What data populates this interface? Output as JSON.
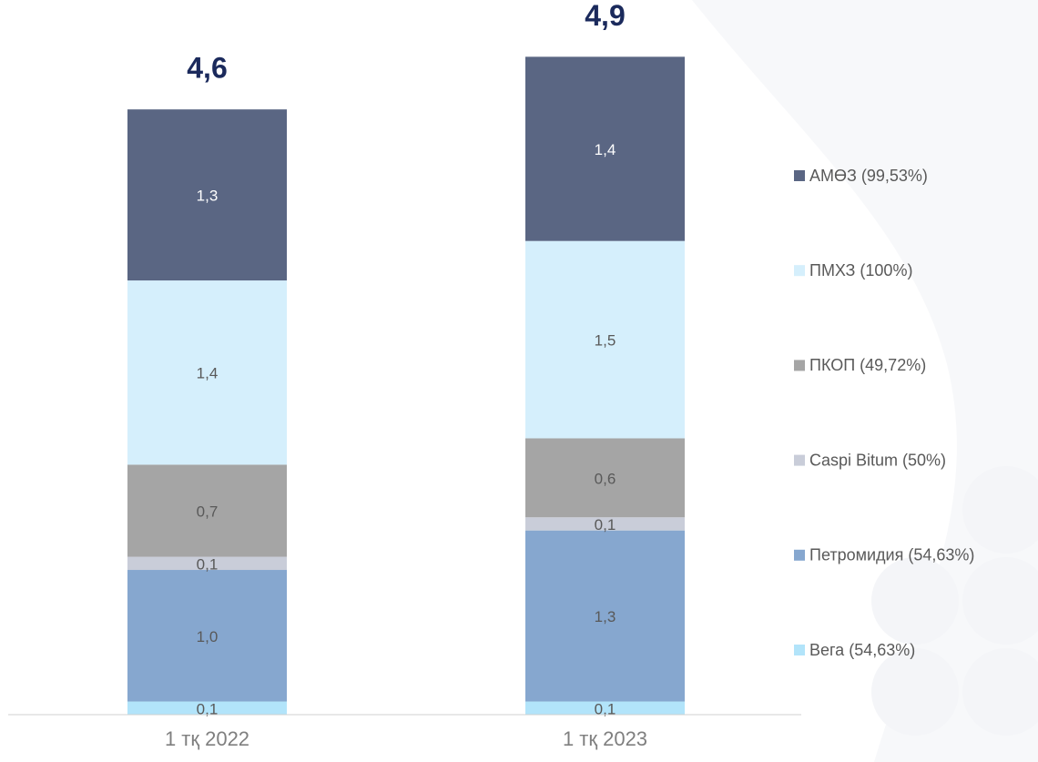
{
  "chart_data": {
    "type": "bar",
    "stacked": true,
    "categories": [
      "1 тқ 2022",
      "1 тқ 2023"
    ],
    "series": [
      {
        "name": "Вега (54,63%)",
        "color": "#b2e4fa",
        "values": [
          0.1,
          0.1
        ],
        "value_labels": [
          "0,1",
          "0,1"
        ]
      },
      {
        "name": "Петромидия (54,63%)",
        "color": "#86a7cf",
        "values": [
          1.0,
          1.3
        ],
        "value_labels": [
          "1,0",
          "1,3"
        ]
      },
      {
        "name": "Caspi Bitum (50%)",
        "color": "#c9cdd9",
        "values": [
          0.1,
          0.1
        ],
        "value_labels": [
          "0,1",
          "0,1"
        ]
      },
      {
        "name": "ПКОП (49,72%)",
        "color": "#a5a5a5",
        "values": [
          0.7,
          0.6
        ],
        "value_labels": [
          "0,7",
          "0,6"
        ]
      },
      {
        "name": "ПМХЗ (100%)",
        "color": "#d5effc",
        "values": [
          1.4,
          1.5
        ],
        "value_labels": [
          "1,4",
          "1,5"
        ]
      },
      {
        "name": "АМӨЗ (99,53%)",
        "color": "#5a6683",
        "values": [
          1.3,
          1.4
        ],
        "value_labels": [
          "1,3",
          "1,4"
        ]
      }
    ],
    "totals": [
      4.6,
      4.9
    ],
    "total_labels": [
      "4,6",
      "4,9"
    ],
    "ylim": [
      0,
      5.3
    ],
    "legend": "right"
  }
}
